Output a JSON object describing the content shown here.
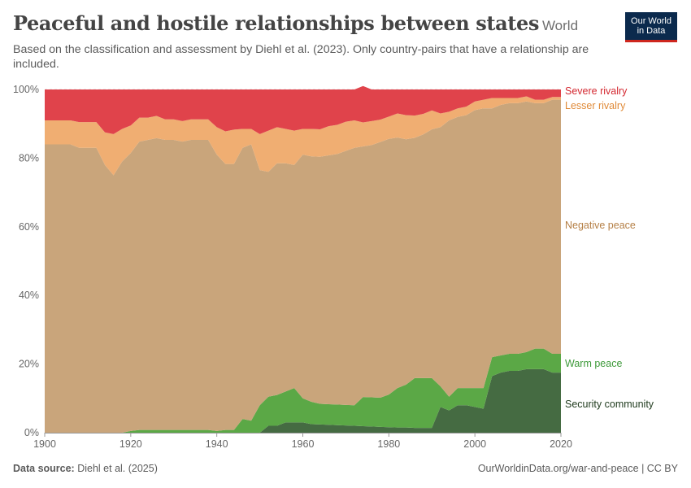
{
  "header": {
    "title": "Peaceful and hostile relationships between states",
    "entity": "World",
    "subtitle": "Based on the classification and assessment by Diehl et al. (2023). Only country-pairs that have a relationship are included.",
    "logo_line1": "Our World",
    "logo_line2": "in Data"
  },
  "footer": {
    "source_label": "Data source:",
    "source_text": " Diehl et al. (2025)",
    "url_text": "OurWorldinData.org/war-and-peace | CC BY"
  },
  "colors": {
    "severe_rivalry": "#e0434b",
    "lesser_rivalry": "#f0ae72",
    "negative_peace": "#c9a57b",
    "warm_peace": "#5ba846",
    "security_community": "#456b42",
    "severe_rivalry_label": "#d42a32",
    "lesser_rivalry_label": "#e08a38",
    "negative_peace_label": "#b57f45",
    "warm_peace_label": "#3e9a3a",
    "security_community_label": "#223d20"
  },
  "chart_data": {
    "type": "area",
    "stacked": true,
    "ylim": [
      0,
      100
    ],
    "yticks": [
      0,
      20,
      40,
      60,
      80,
      100
    ],
    "ytick_labels": [
      "0%",
      "20%",
      "40%",
      "60%",
      "80%",
      "100%"
    ],
    "xlim": [
      1900,
      2020
    ],
    "xticks": [
      1900,
      1920,
      1940,
      1960,
      1980,
      2000,
      2020
    ],
    "xtick_labels": [
      "1900",
      "1920",
      "1940",
      "1960",
      "1980",
      "2000",
      "2020"
    ],
    "grid": "horizontal dotted",
    "legend": "right-side inline labels",
    "x": [
      1900,
      1902,
      1904,
      1906,
      1908,
      1910,
      1912,
      1914,
      1916,
      1918,
      1920,
      1922,
      1924,
      1926,
      1928,
      1930,
      1932,
      1934,
      1936,
      1938,
      1940,
      1942,
      1944,
      1946,
      1948,
      1950,
      1952,
      1954,
      1956,
      1958,
      1960,
      1962,
      1964,
      1966,
      1968,
      1970,
      1972,
      1974,
      1976,
      1978,
      1980,
      1982,
      1984,
      1986,
      1988,
      1990,
      1992,
      1994,
      1996,
      1998,
      2000,
      2002,
      2004,
      2006,
      2008,
      2010,
      2012,
      2014,
      2016,
      2018,
      2020
    ],
    "series": [
      {
        "name": "Security community",
        "values": [
          0,
          0,
          0,
          0,
          0,
          0,
          0,
          0,
          0,
          0,
          0,
          0,
          0,
          0,
          0,
          0,
          0,
          0,
          0,
          0,
          0,
          0,
          0,
          0,
          0,
          0,
          2,
          2,
          3,
          3,
          3,
          2.5,
          2.4,
          2.3,
          2.2,
          2.1,
          2,
          1.9,
          1.8,
          1.7,
          1.6,
          1.5,
          1.5,
          1.4,
          1.4,
          1.4,
          7.5,
          6.5,
          8,
          8,
          7.5,
          7,
          16.5,
          17.5,
          18,
          18,
          18.5,
          18.5,
          18.5,
          17.5,
          17.5
        ]
      },
      {
        "name": "Warm peace",
        "values": [
          0,
          0,
          0,
          0,
          0,
          0,
          0,
          0,
          0,
          0,
          0.5,
          0.8,
          0.8,
          0.8,
          0.8,
          0.8,
          0.8,
          0.8,
          0.8,
          0.8,
          0.5,
          0.8,
          0.8,
          4,
          3.5,
          8,
          8.5,
          9,
          9,
          10,
          7,
          6.5,
          6,
          6,
          6,
          6,
          6,
          8.5,
          8.5,
          8.5,
          9.5,
          11.5,
          12.5,
          14.5,
          14.5,
          14.5,
          6,
          4,
          5,
          5,
          5.5,
          6,
          5.5,
          5,
          5,
          5,
          5,
          6,
          6,
          5.5,
          5.5
        ]
      },
      {
        "name": "Negative peace",
        "values": [
          84,
          84,
          84,
          84,
          83,
          83,
          83,
          78,
          75,
          79,
          81,
          84,
          84.5,
          85,
          84.5,
          84.5,
          84,
          84.5,
          84.5,
          84.5,
          80.5,
          77.5,
          77.5,
          79,
          80.5,
          68.5,
          65.5,
          67.5,
          66.5,
          65,
          71,
          71.5,
          72,
          72.5,
          73,
          74,
          75,
          73,
          73.5,
          74.5,
          74.5,
          73,
          71.5,
          70,
          71,
          72.5,
          75.5,
          80.5,
          79,
          79.5,
          81,
          81.5,
          72.5,
          73,
          73,
          73,
          73,
          71.5,
          71.5,
          74,
          74
        ]
      },
      {
        "name": "Lesser rivalry",
        "values": [
          7,
          7,
          7,
          7,
          7.5,
          7.5,
          7.5,
          9.5,
          12,
          9.5,
          8,
          7,
          6.5,
          6.5,
          6,
          6,
          6,
          6,
          6,
          6,
          8,
          9.5,
          10,
          5.5,
          4.5,
          10.5,
          12,
          10.5,
          10,
          10,
          7.5,
          8,
          8,
          8.5,
          8.5,
          8.5,
          8,
          7,
          7,
          6.5,
          6.5,
          7,
          7,
          6.5,
          6,
          5.5,
          4,
          2.5,
          2.5,
          2.5,
          2.5,
          2.5,
          3,
          2,
          1.5,
          1.5,
          1.5,
          1,
          1,
          0.8,
          0.8
        ]
      },
      {
        "name": "Severe rivalry",
        "values": [
          9,
          9,
          9,
          9,
          9.5,
          9.5,
          9.5,
          12.5,
          13,
          11.5,
          10.5,
          8.2,
          8.2,
          7.7,
          8.7,
          8.7,
          9.2,
          8.7,
          8.7,
          8.7,
          11,
          12.2,
          11.7,
          11.5,
          11.5,
          13,
          12,
          11,
          11.5,
          12,
          11.5,
          11.5,
          11.6,
          10.7,
          10.3,
          9.4,
          9,
          10.6,
          9.2,
          8.8,
          7.9,
          7,
          7.5,
          7.6,
          7.1,
          6.1,
          7,
          6.5,
          5.5,
          5,
          3.5,
          3,
          2.5,
          2.5,
          2.5,
          2.5,
          2,
          3,
          3,
          2.2,
          2.2
        ]
      }
    ]
  }
}
